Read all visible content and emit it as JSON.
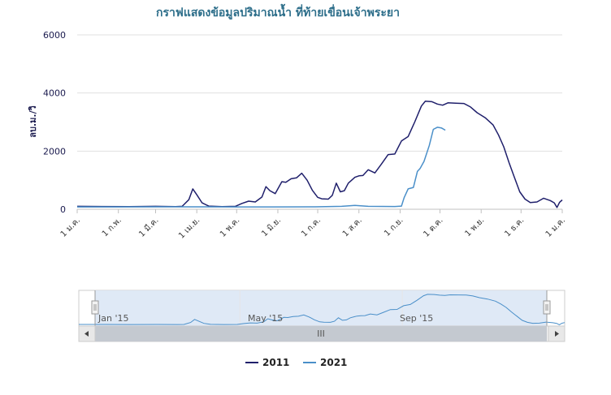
{
  "chart_data": {
    "type": "line",
    "title": "กราฟแสดงข้อมูลปริมาณน้ำ ที่ท้ายเขื่อนเจ้าพระยา",
    "ylabel": "ลบ.ม./วิ",
    "ylim": [
      0,
      6000
    ],
    "yticks": [
      0,
      2000,
      4000,
      6000
    ],
    "xlim": [
      1,
      366
    ],
    "xticks": [
      {
        "label": "1 ม.ค.",
        "day": 1
      },
      {
        "label": "1 ก.พ.",
        "day": 32
      },
      {
        "label": "1 มี.ค.",
        "day": 60
      },
      {
        "label": "1 เม.ย.",
        "day": 91
      },
      {
        "label": "1 พ.ค.",
        "day": 121
      },
      {
        "label": "1 มิ.ย.",
        "day": 152
      },
      {
        "label": "1 ก.ค.",
        "day": 182
      },
      {
        "label": "1 ส.ค.",
        "day": 213
      },
      {
        "label": "1 ก.ย.",
        "day": 244
      },
      {
        "label": "1 ต.ค.",
        "day": 274
      },
      {
        "label": "1 พ.ย.",
        "day": 305
      },
      {
        "label": "1 ธ.ค.",
        "day": 335
      },
      {
        "label": "1 ม.ค.",
        "day": 366
      }
    ],
    "grid": true,
    "legend_position": "bottom-center",
    "series": [
      {
        "name": "2011",
        "color": "#1f1f6b",
        "points": [
          [
            1,
            100
          ],
          [
            20,
            95
          ],
          [
            40,
            90
          ],
          [
            60,
            100
          ],
          [
            75,
            90
          ],
          [
            80,
            100
          ],
          [
            85,
            330
          ],
          [
            88,
            700
          ],
          [
            91,
            500
          ],
          [
            95,
            220
          ],
          [
            100,
            110
          ],
          [
            110,
            90
          ],
          [
            120,
            100
          ],
          [
            125,
            200
          ],
          [
            130,
            280
          ],
          [
            135,
            250
          ],
          [
            140,
            420
          ],
          [
            143,
            780
          ],
          [
            146,
            640
          ],
          [
            150,
            540
          ],
          [
            155,
            950
          ],
          [
            158,
            930
          ],
          [
            162,
            1050
          ],
          [
            166,
            1080
          ],
          [
            170,
            1240
          ],
          [
            174,
            1000
          ],
          [
            178,
            650
          ],
          [
            182,
            410
          ],
          [
            185,
            360
          ],
          [
            190,
            350
          ],
          [
            193,
            480
          ],
          [
            196,
            900
          ],
          [
            199,
            600
          ],
          [
            202,
            640
          ],
          [
            205,
            900
          ],
          [
            208,
            1020
          ],
          [
            210,
            1100
          ],
          [
            213,
            1150
          ],
          [
            216,
            1160
          ],
          [
            220,
            1360
          ],
          [
            225,
            1250
          ],
          [
            230,
            1560
          ],
          [
            235,
            1880
          ],
          [
            240,
            1900
          ],
          [
            245,
            2350
          ],
          [
            250,
            2500
          ],
          [
            255,
            3000
          ],
          [
            260,
            3550
          ],
          [
            263,
            3720
          ],
          [
            268,
            3700
          ],
          [
            272,
            3620
          ],
          [
            276,
            3580
          ],
          [
            280,
            3660
          ],
          [
            286,
            3650
          ],
          [
            292,
            3640
          ],
          [
            297,
            3520
          ],
          [
            302,
            3320
          ],
          [
            308,
            3150
          ],
          [
            314,
            2900
          ],
          [
            318,
            2560
          ],
          [
            322,
            2150
          ],
          [
            326,
            1600
          ],
          [
            330,
            1100
          ],
          [
            334,
            600
          ],
          [
            338,
            350
          ],
          [
            342,
            230
          ],
          [
            347,
            250
          ],
          [
            352,
            380
          ],
          [
            357,
            300
          ],
          [
            360,
            220
          ],
          [
            362,
            60
          ],
          [
            364,
            240
          ],
          [
            366,
            320
          ]
        ]
      },
      {
        "name": "2021",
        "color": "#4a8fc9",
        "points": [
          [
            1,
            80
          ],
          [
            30,
            80
          ],
          [
            60,
            85
          ],
          [
            90,
            85
          ],
          [
            120,
            80
          ],
          [
            150,
            80
          ],
          [
            180,
            85
          ],
          [
            200,
            100
          ],
          [
            210,
            130
          ],
          [
            220,
            100
          ],
          [
            240,
            95
          ],
          [
            245,
            110
          ],
          [
            247,
            400
          ],
          [
            250,
            700
          ],
          [
            254,
            750
          ],
          [
            257,
            1300
          ],
          [
            259,
            1400
          ],
          [
            262,
            1650
          ],
          [
            266,
            2200
          ],
          [
            269,
            2750
          ],
          [
            272,
            2820
          ],
          [
            275,
            2800
          ],
          [
            278,
            2720
          ]
        ]
      }
    ]
  },
  "navigator": {
    "labels": [
      "Jan '15",
      "May '15",
      "Sep '15"
    ],
    "scrollbar_grip": "III"
  },
  "legend": {
    "items": [
      {
        "label": "2011",
        "color": "#1f1f6b"
      },
      {
        "label": "2021",
        "color": "#4a8fc9"
      }
    ]
  }
}
